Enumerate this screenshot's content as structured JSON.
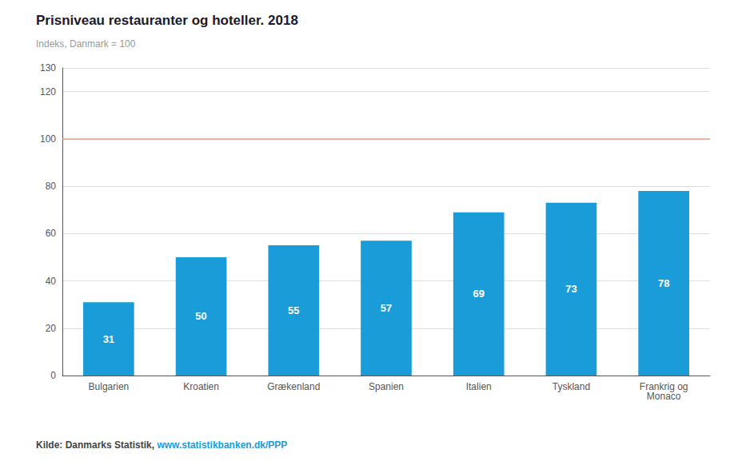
{
  "chart_data": {
    "type": "bar",
    "title": "Prisniveau restauranter og hoteller. 2018",
    "subtitle": "Indeks, Danmark = 100",
    "categories": [
      "Bulgarien",
      "Kroatien",
      "Grækenland",
      "Spanien",
      "Italien",
      "Tyskland",
      "Frankrig og\nMonaco"
    ],
    "values": [
      31,
      50,
      55,
      57,
      69,
      73,
      78
    ],
    "color": "#1a9cd8",
    "data_labels": true,
    "reference_line": {
      "value": 100,
      "color": "#f0a080"
    },
    "ylim": [
      0,
      130
    ],
    "yticks": [
      0,
      20,
      40,
      60,
      80,
      100,
      120
    ],
    "grid": true,
    "annotations": [
      {
        "text": "Kilde: Danmarks Statistik, ",
        "color": "#444444"
      },
      {
        "text": "www.statistikbanken.dk/PPP",
        "color": "#1a9cd8"
      }
    ]
  }
}
